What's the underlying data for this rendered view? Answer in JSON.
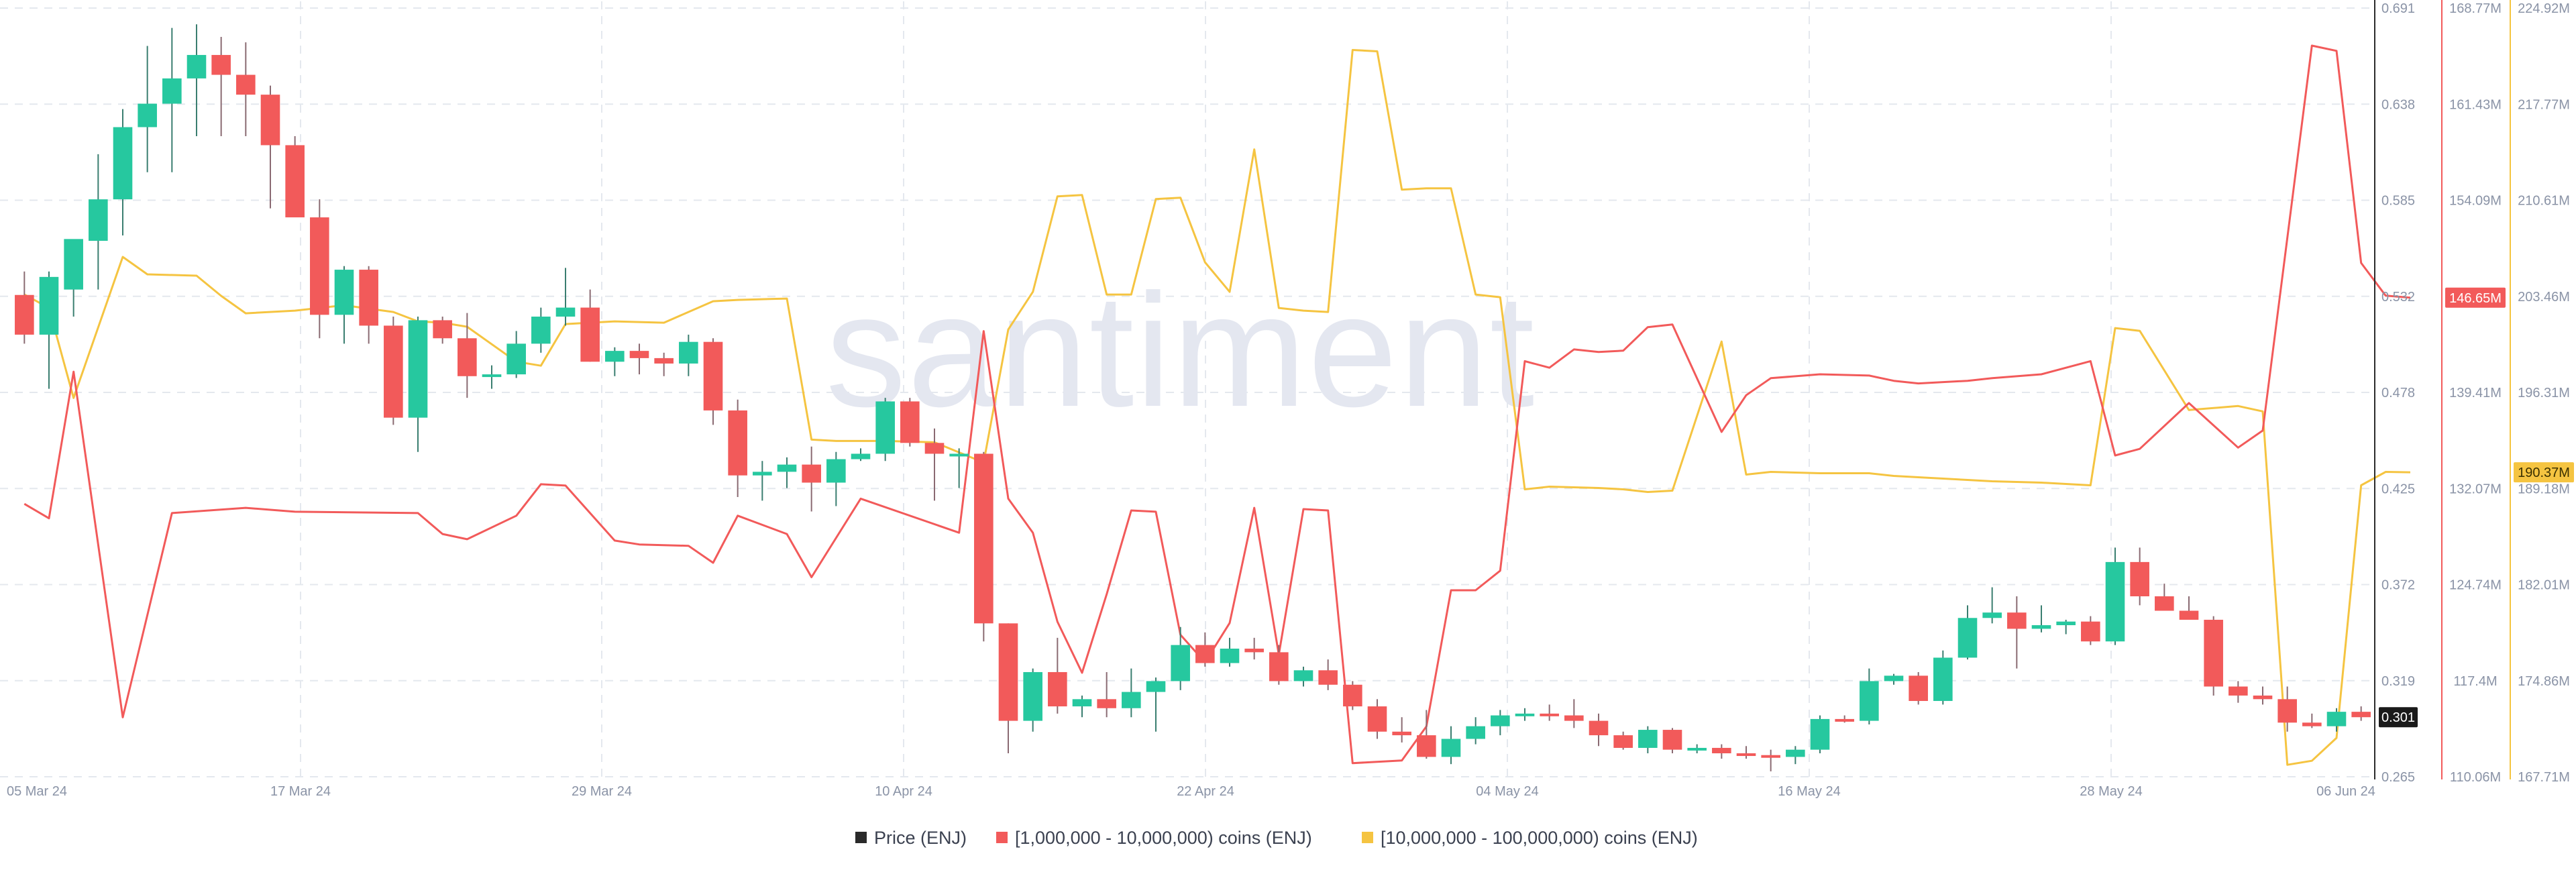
{
  "watermark": "santiment",
  "colors": {
    "price_up": "#26c89f",
    "price_down": "#f25a5a",
    "red_series": "#f25a5a",
    "yellow_series": "#f5c441",
    "price_legend": "#2a2a2a",
    "grid": "#e4e8ee",
    "tick": "#8a93a6"
  },
  "legend": [
    {
      "name": "Price (ENJ)",
      "color": "#2a2a2a"
    },
    {
      "name": "[1,000,000 - 10,000,000) coins (ENJ)",
      "color": "#f25a5a"
    },
    {
      "name": "[10,000,000 - 100,000,000) coins (ENJ)",
      "color": "#f5c441"
    }
  ],
  "chart_data": {
    "type": "candlestick",
    "x_tick_labels": [
      "05 Mar 24",
      "17 Mar 24",
      "29 Mar 24",
      "10 Apr 24",
      "22 Apr 24",
      "04 May 24",
      "16 May 24",
      "28 May 24",
      "06 Jun 24"
    ],
    "price_axis": {
      "ticks": [
        "0.691",
        "0.638",
        "0.585",
        "0.532",
        "0.478",
        "0.425",
        "0.372",
        "0.319",
        "0.265"
      ],
      "range": [
        0.265,
        0.691
      ],
      "current_label": "0.301"
    },
    "red_axis": {
      "ticks": [
        "168.77M",
        "161.43M",
        "154.09M",
        "146.65M",
        "139.41M",
        "132.07M",
        "124.74M",
        "117.4M",
        "110.06M"
      ],
      "range": [
        110.06,
        168.77
      ],
      "unit": "M",
      "current_label": "146.65M"
    },
    "yellow_axis": {
      "ticks": [
        "224.92M",
        "217.77M",
        "210.61M",
        "203.46M",
        "196.31M",
        "189.18M",
        "182.01M",
        "174.86M",
        "167.71M"
      ],
      "range": [
        167.71,
        224.92
      ],
      "unit": "M",
      "current_label": "190.37M"
    },
    "candles": [
      {
        "o": 0.532,
        "h": 0.545,
        "l": 0.505,
        "c": 0.51
      },
      {
        "o": 0.51,
        "h": 0.545,
        "l": 0.48,
        "c": 0.542
      },
      {
        "o": 0.535,
        "h": 0.56,
        "l": 0.52,
        "c": 0.563
      },
      {
        "o": 0.562,
        "h": 0.61,
        "l": 0.535,
        "c": 0.585
      },
      {
        "o": 0.585,
        "h": 0.635,
        "l": 0.565,
        "c": 0.625
      },
      {
        "o": 0.625,
        "h": 0.67,
        "l": 0.6,
        "c": 0.638
      },
      {
        "o": 0.638,
        "h": 0.68,
        "l": 0.6,
        "c": 0.652
      },
      {
        "o": 0.652,
        "h": 0.682,
        "l": 0.62,
        "c": 0.665
      },
      {
        "o": 0.665,
        "h": 0.675,
        "l": 0.62,
        "c": 0.654
      },
      {
        "o": 0.654,
        "h": 0.672,
        "l": 0.62,
        "c": 0.643
      },
      {
        "o": 0.643,
        "h": 0.648,
        "l": 0.58,
        "c": 0.615
      },
      {
        "o": 0.615,
        "h": 0.62,
        "l": 0.575,
        "c": 0.575
      },
      {
        "o": 0.575,
        "h": 0.585,
        "l": 0.508,
        "c": 0.521
      },
      {
        "o": 0.521,
        "h": 0.548,
        "l": 0.505,
        "c": 0.546
      },
      {
        "o": 0.546,
        "h": 0.548,
        "l": 0.505,
        "c": 0.515
      },
      {
        "o": 0.515,
        "h": 0.52,
        "l": 0.46,
        "c": 0.464
      },
      {
        "o": 0.464,
        "h": 0.52,
        "l": 0.445,
        "c": 0.518
      },
      {
        "o": 0.518,
        "h": 0.52,
        "l": 0.505,
        "c": 0.508
      },
      {
        "o": 0.508,
        "h": 0.522,
        "l": 0.475,
        "c": 0.487
      },
      {
        "o": 0.487,
        "h": 0.493,
        "l": 0.48,
        "c": 0.488
      },
      {
        "o": 0.488,
        "h": 0.512,
        "l": 0.486,
        "c": 0.505
      },
      {
        "o": 0.505,
        "h": 0.525,
        "l": 0.5,
        "c": 0.52
      },
      {
        "o": 0.52,
        "h": 0.547,
        "l": 0.515,
        "c": 0.525
      },
      {
        "o": 0.525,
        "h": 0.535,
        "l": 0.495,
        "c": 0.495
      },
      {
        "o": 0.495,
        "h": 0.503,
        "l": 0.487,
        "c": 0.501
      },
      {
        "o": 0.501,
        "h": 0.505,
        "l": 0.488,
        "c": 0.497
      },
      {
        "o": 0.497,
        "h": 0.5,
        "l": 0.487,
        "c": 0.494
      },
      {
        "o": 0.494,
        "h": 0.51,
        "l": 0.487,
        "c": 0.506
      },
      {
        "o": 0.506,
        "h": 0.508,
        "l": 0.46,
        "c": 0.468
      },
      {
        "o": 0.468,
        "h": 0.474,
        "l": 0.42,
        "c": 0.432
      },
      {
        "o": 0.432,
        "h": 0.44,
        "l": 0.418,
        "c": 0.434
      },
      {
        "o": 0.434,
        "h": 0.442,
        "l": 0.425,
        "c": 0.438
      },
      {
        "o": 0.438,
        "h": 0.448,
        "l": 0.412,
        "c": 0.428
      },
      {
        "o": 0.428,
        "h": 0.445,
        "l": 0.415,
        "c": 0.441
      },
      {
        "o": 0.441,
        "h": 0.447,
        "l": 0.44,
        "c": 0.444
      },
      {
        "o": 0.444,
        "h": 0.475,
        "l": 0.44,
        "c": 0.473
      },
      {
        "o": 0.473,
        "h": 0.475,
        "l": 0.448,
        "c": 0.45
      },
      {
        "o": 0.45,
        "h": 0.458,
        "l": 0.418,
        "c": 0.444
      },
      {
        "o": 0.444,
        "h": 0.447,
        "l": 0.425,
        "c": 0.444
      },
      {
        "o": 0.444,
        "h": 0.445,
        "l": 0.34,
        "c": 0.35
      },
      {
        "o": 0.35,
        "h": 0.35,
        "l": 0.278,
        "c": 0.296
      },
      {
        "o": 0.296,
        "h": 0.325,
        "l": 0.29,
        "c": 0.323
      },
      {
        "o": 0.323,
        "h": 0.342,
        "l": 0.3,
        "c": 0.304
      },
      {
        "o": 0.304,
        "h": 0.31,
        "l": 0.298,
        "c": 0.308
      },
      {
        "o": 0.308,
        "h": 0.323,
        "l": 0.298,
        "c": 0.303
      },
      {
        "o": 0.303,
        "h": 0.325,
        "l": 0.298,
        "c": 0.312
      },
      {
        "o": 0.312,
        "h": 0.32,
        "l": 0.29,
        "c": 0.318
      },
      {
        "o": 0.318,
        "h": 0.348,
        "l": 0.313,
        "c": 0.338
      },
      {
        "o": 0.338,
        "h": 0.345,
        "l": 0.326,
        "c": 0.328
      },
      {
        "o": 0.328,
        "h": 0.342,
        "l": 0.326,
        "c": 0.336
      },
      {
        "o": 0.336,
        "h": 0.342,
        "l": 0.33,
        "c": 0.334
      },
      {
        "o": 0.334,
        "h": 0.338,
        "l": 0.316,
        "c": 0.318
      },
      {
        "o": 0.318,
        "h": 0.326,
        "l": 0.315,
        "c": 0.324
      },
      {
        "o": 0.324,
        "h": 0.33,
        "l": 0.313,
        "c": 0.316
      },
      {
        "o": 0.316,
        "h": 0.318,
        "l": 0.302,
        "c": 0.304
      },
      {
        "o": 0.304,
        "h": 0.308,
        "l": 0.286,
        "c": 0.29
      },
      {
        "o": 0.29,
        "h": 0.298,
        "l": 0.284,
        "c": 0.288
      },
      {
        "o": 0.288,
        "h": 0.302,
        "l": 0.275,
        "c": 0.276
      },
      {
        "o": 0.276,
        "h": 0.293,
        "l": 0.272,
        "c": 0.286
      },
      {
        "o": 0.286,
        "h": 0.298,
        "l": 0.283,
        "c": 0.293
      },
      {
        "o": 0.293,
        "h": 0.302,
        "l": 0.288,
        "c": 0.299
      },
      {
        "o": 0.299,
        "h": 0.303,
        "l": 0.296,
        "c": 0.3
      },
      {
        "o": 0.3,
        "h": 0.305,
        "l": 0.296,
        "c": 0.299
      },
      {
        "o": 0.299,
        "h": 0.308,
        "l": 0.292,
        "c": 0.296
      },
      {
        "o": 0.296,
        "h": 0.3,
        "l": 0.282,
        "c": 0.288
      },
      {
        "o": 0.288,
        "h": 0.29,
        "l": 0.28,
        "c": 0.281
      },
      {
        "o": 0.281,
        "h": 0.293,
        "l": 0.278,
        "c": 0.291
      },
      {
        "o": 0.291,
        "h": 0.292,
        "l": 0.278,
        "c": 0.28
      },
      {
        "o": 0.28,
        "h": 0.283,
        "l": 0.278,
        "c": 0.281
      },
      {
        "o": 0.281,
        "h": 0.283,
        "l": 0.275,
        "c": 0.278
      },
      {
        "o": 0.278,
        "h": 0.282,
        "l": 0.275,
        "c": 0.277
      },
      {
        "o": 0.277,
        "h": 0.28,
        "l": 0.268,
        "c": 0.276
      },
      {
        "o": 0.276,
        "h": 0.282,
        "l": 0.272,
        "c": 0.28
      },
      {
        "o": 0.28,
        "h": 0.299,
        "l": 0.278,
        "c": 0.297
      },
      {
        "o": 0.297,
        "h": 0.299,
        "l": 0.295,
        "c": 0.296
      },
      {
        "o": 0.296,
        "h": 0.325,
        "l": 0.294,
        "c": 0.318
      },
      {
        "o": 0.318,
        "h": 0.322,
        "l": 0.316,
        "c": 0.321
      },
      {
        "o": 0.321,
        "h": 0.323,
        "l": 0.305,
        "c": 0.307
      },
      {
        "o": 0.307,
        "h": 0.335,
        "l": 0.305,
        "c": 0.331
      },
      {
        "o": 0.331,
        "h": 0.36,
        "l": 0.33,
        "c": 0.353
      },
      {
        "o": 0.353,
        "h": 0.37,
        "l": 0.35,
        "c": 0.356
      },
      {
        "o": 0.356,
        "h": 0.365,
        "l": 0.325,
        "c": 0.347
      },
      {
        "o": 0.347,
        "h": 0.36,
        "l": 0.345,
        "c": 0.349
      },
      {
        "o": 0.349,
        "h": 0.352,
        "l": 0.344,
        "c": 0.351
      },
      {
        "o": 0.351,
        "h": 0.354,
        "l": 0.338,
        "c": 0.34
      },
      {
        "o": 0.34,
        "h": 0.392,
        "l": 0.338,
        "c": 0.384
      },
      {
        "o": 0.384,
        "h": 0.392,
        "l": 0.36,
        "c": 0.365
      },
      {
        "o": 0.365,
        "h": 0.372,
        "l": 0.36,
        "c": 0.357
      },
      {
        "o": 0.357,
        "h": 0.365,
        "l": 0.355,
        "c": 0.352
      },
      {
        "o": 0.352,
        "h": 0.354,
        "l": 0.31,
        "c": 0.315
      },
      {
        "o": 0.315,
        "h": 0.318,
        "l": 0.306,
        "c": 0.31
      },
      {
        "o": 0.31,
        "h": 0.315,
        "l": 0.305,
        "c": 0.308
      },
      {
        "o": 0.308,
        "h": 0.315,
        "l": 0.29,
        "c": 0.295
      },
      {
        "o": 0.295,
        "h": 0.3,
        "l": 0.292,
        "c": 0.293
      },
      {
        "o": 0.293,
        "h": 0.303,
        "l": 0.29,
        "c": 0.301
      },
      {
        "o": 0.301,
        "h": 0.304,
        "l": 0.296,
        "c": 0.298
      }
    ],
    "red_series": [
      {
        "i": 0,
        "v": 130.9
      },
      {
        "i": 1,
        "v": 129.8
      },
      {
        "i": 2,
        "v": 141.0
      },
      {
        "i": 4,
        "v": 114.6
      },
      {
        "i": 6,
        "v": 130.2
      },
      {
        "i": 9,
        "v": 130.6
      },
      {
        "i": 11,
        "v": 130.3
      },
      {
        "i": 16,
        "v": 130.2
      },
      {
        "i": 17,
        "v": 128.6
      },
      {
        "i": 18,
        "v": 128.2
      },
      {
        "i": 20,
        "v": 130.0
      },
      {
        "i": 21,
        "v": 132.4
      },
      {
        "i": 22,
        "v": 132.3
      },
      {
        "i": 24,
        "v": 128.1
      },
      {
        "i": 25,
        "v": 127.8
      },
      {
        "i": 27,
        "v": 127.7
      },
      {
        "i": 28,
        "v": 126.4
      },
      {
        "i": 29,
        "v": 130.0
      },
      {
        "i": 31,
        "v": 128.6
      },
      {
        "i": 32,
        "v": 125.3
      },
      {
        "i": 34,
        "v": 131.3
      },
      {
        "i": 38,
        "v": 128.7
      },
      {
        "i": 39,
        "v": 144.1
      },
      {
        "i": 40,
        "v": 131.3
      },
      {
        "i": 41,
        "v": 128.7
      },
      {
        "i": 42,
        "v": 121.9
      },
      {
        "i": 43,
        "v": 118.0
      },
      {
        "i": 44,
        "v": 124.0
      },
      {
        "i": 45,
        "v": 130.4
      },
      {
        "i": 46,
        "v": 130.3
      },
      {
        "i": 47,
        "v": 120.9
      },
      {
        "i": 48,
        "v": 118.8
      },
      {
        "i": 49,
        "v": 121.8
      },
      {
        "i": 50,
        "v": 130.6
      },
      {
        "i": 51,
        "v": 119.4
      },
      {
        "i": 52,
        "v": 130.5
      },
      {
        "i": 53,
        "v": 130.4
      },
      {
        "i": 54,
        "v": 111.1
      },
      {
        "i": 56,
        "v": 111.3
      },
      {
        "i": 57,
        "v": 113.9
      },
      {
        "i": 58,
        "v": 124.3
      },
      {
        "i": 59,
        "v": 124.3
      },
      {
        "i": 60,
        "v": 125.8
      },
      {
        "i": 61,
        "v": 141.8
      },
      {
        "i": 62,
        "v": 141.3
      },
      {
        "i": 63,
        "v": 142.7
      },
      {
        "i": 64,
        "v": 142.5
      },
      {
        "i": 65,
        "v": 142.6
      },
      {
        "i": 66,
        "v": 144.4
      },
      {
        "i": 67,
        "v": 144.6
      },
      {
        "i": 69,
        "v": 136.4
      },
      {
        "i": 70,
        "v": 139.2
      },
      {
        "i": 71,
        "v": 140.5
      },
      {
        "i": 73,
        "v": 140.8
      },
      {
        "i": 75,
        "v": 140.7
      },
      {
        "i": 76,
        "v": 140.3
      },
      {
        "i": 77,
        "v": 140.1
      },
      {
        "i": 79,
        "v": 140.3
      },
      {
        "i": 80,
        "v": 140.5
      },
      {
        "i": 82,
        "v": 140.8
      },
      {
        "i": 84,
        "v": 141.8
      },
      {
        "i": 85,
        "v": 134.6
      },
      {
        "i": 86,
        "v": 135.1
      },
      {
        "i": 88,
        "v": 138.6
      },
      {
        "i": 90,
        "v": 135.2
      },
      {
        "i": 91,
        "v": 136.5
      },
      {
        "i": 93,
        "v": 165.9
      },
      {
        "i": 94,
        "v": 165.5
      },
      {
        "i": 95,
        "v": 149.3
      },
      {
        "i": 96,
        "v": 146.8
      },
      {
        "i": 97,
        "v": 146.65
      }
    ],
    "yellow_series": [
      {
        "i": 0,
        "v": 203.6
      },
      {
        "i": 1,
        "v": 202.6
      },
      {
        "i": 2,
        "v": 195.9
      },
      {
        "i": 4,
        "v": 206.4
      },
      {
        "i": 5,
        "v": 205.1
      },
      {
        "i": 7,
        "v": 205.0
      },
      {
        "i": 8,
        "v": 203.5
      },
      {
        "i": 9,
        "v": 202.2
      },
      {
        "i": 11,
        "v": 202.4
      },
      {
        "i": 13,
        "v": 202.8
      },
      {
        "i": 15,
        "v": 202.3
      },
      {
        "i": 16,
        "v": 201.6
      },
      {
        "i": 17,
        "v": 201.5
      },
      {
        "i": 18,
        "v": 201.2
      },
      {
        "i": 20,
        "v": 198.6
      },
      {
        "i": 21,
        "v": 198.3
      },
      {
        "i": 22,
        "v": 201.4
      },
      {
        "i": 24,
        "v": 201.6
      },
      {
        "i": 26,
        "v": 201.5
      },
      {
        "i": 28,
        "v": 203.1
      },
      {
        "i": 29,
        "v": 203.2
      },
      {
        "i": 31,
        "v": 203.3
      },
      {
        "i": 32,
        "v": 192.8
      },
      {
        "i": 33,
        "v": 192.7
      },
      {
        "i": 35,
        "v": 192.7
      },
      {
        "i": 37,
        "v": 192.6
      },
      {
        "i": 39,
        "v": 191.1
      },
      {
        "i": 40,
        "v": 201.0
      },
      {
        "i": 41,
        "v": 203.8
      },
      {
        "i": 42,
        "v": 210.9
      },
      {
        "i": 43,
        "v": 211.0
      },
      {
        "i": 44,
        "v": 203.6
      },
      {
        "i": 45,
        "v": 203.6
      },
      {
        "i": 46,
        "v": 210.7
      },
      {
        "i": 47,
        "v": 210.8
      },
      {
        "i": 48,
        "v": 206.0
      },
      {
        "i": 49,
        "v": 203.8
      },
      {
        "i": 50,
        "v": 214.4
      },
      {
        "i": 51,
        "v": 202.6
      },
      {
        "i": 52,
        "v": 202.4
      },
      {
        "i": 53,
        "v": 202.3
      },
      {
        "i": 54,
        "v": 221.8
      },
      {
        "i": 55,
        "v": 221.7
      },
      {
        "i": 56,
        "v": 211.4
      },
      {
        "i": 57,
        "v": 211.5
      },
      {
        "i": 58,
        "v": 211.5
      },
      {
        "i": 59,
        "v": 203.6
      },
      {
        "i": 60,
        "v": 203.4
      },
      {
        "i": 61,
        "v": 189.1
      },
      {
        "i": 62,
        "v": 189.3
      },
      {
        "i": 64,
        "v": 189.2
      },
      {
        "i": 65,
        "v": 189.1
      },
      {
        "i": 66,
        "v": 188.9
      },
      {
        "i": 67,
        "v": 189.0
      },
      {
        "i": 69,
        "v": 200.1
      },
      {
        "i": 70,
        "v": 190.2
      },
      {
        "i": 71,
        "v": 190.4
      },
      {
        "i": 73,
        "v": 190.3
      },
      {
        "i": 75,
        "v": 190.3
      },
      {
        "i": 76,
        "v": 190.1
      },
      {
        "i": 77,
        "v": 190.0
      },
      {
        "i": 79,
        "v": 189.8
      },
      {
        "i": 80,
        "v": 189.7
      },
      {
        "i": 82,
        "v": 189.6
      },
      {
        "i": 84,
        "v": 189.4
      },
      {
        "i": 85,
        "v": 201.1
      },
      {
        "i": 86,
        "v": 200.9
      },
      {
        "i": 88,
        "v": 195.0
      },
      {
        "i": 90,
        "v": 195.3
      },
      {
        "i": 91,
        "v": 194.9
      },
      {
        "i": 92,
        "v": 168.6
      },
      {
        "i": 93,
        "v": 168.9
      },
      {
        "i": 94,
        "v": 170.6
      },
      {
        "i": 95,
        "v": 189.4
      },
      {
        "i": 96,
        "v": 190.4
      },
      {
        "i": 97,
        "v": 190.37
      }
    ]
  }
}
